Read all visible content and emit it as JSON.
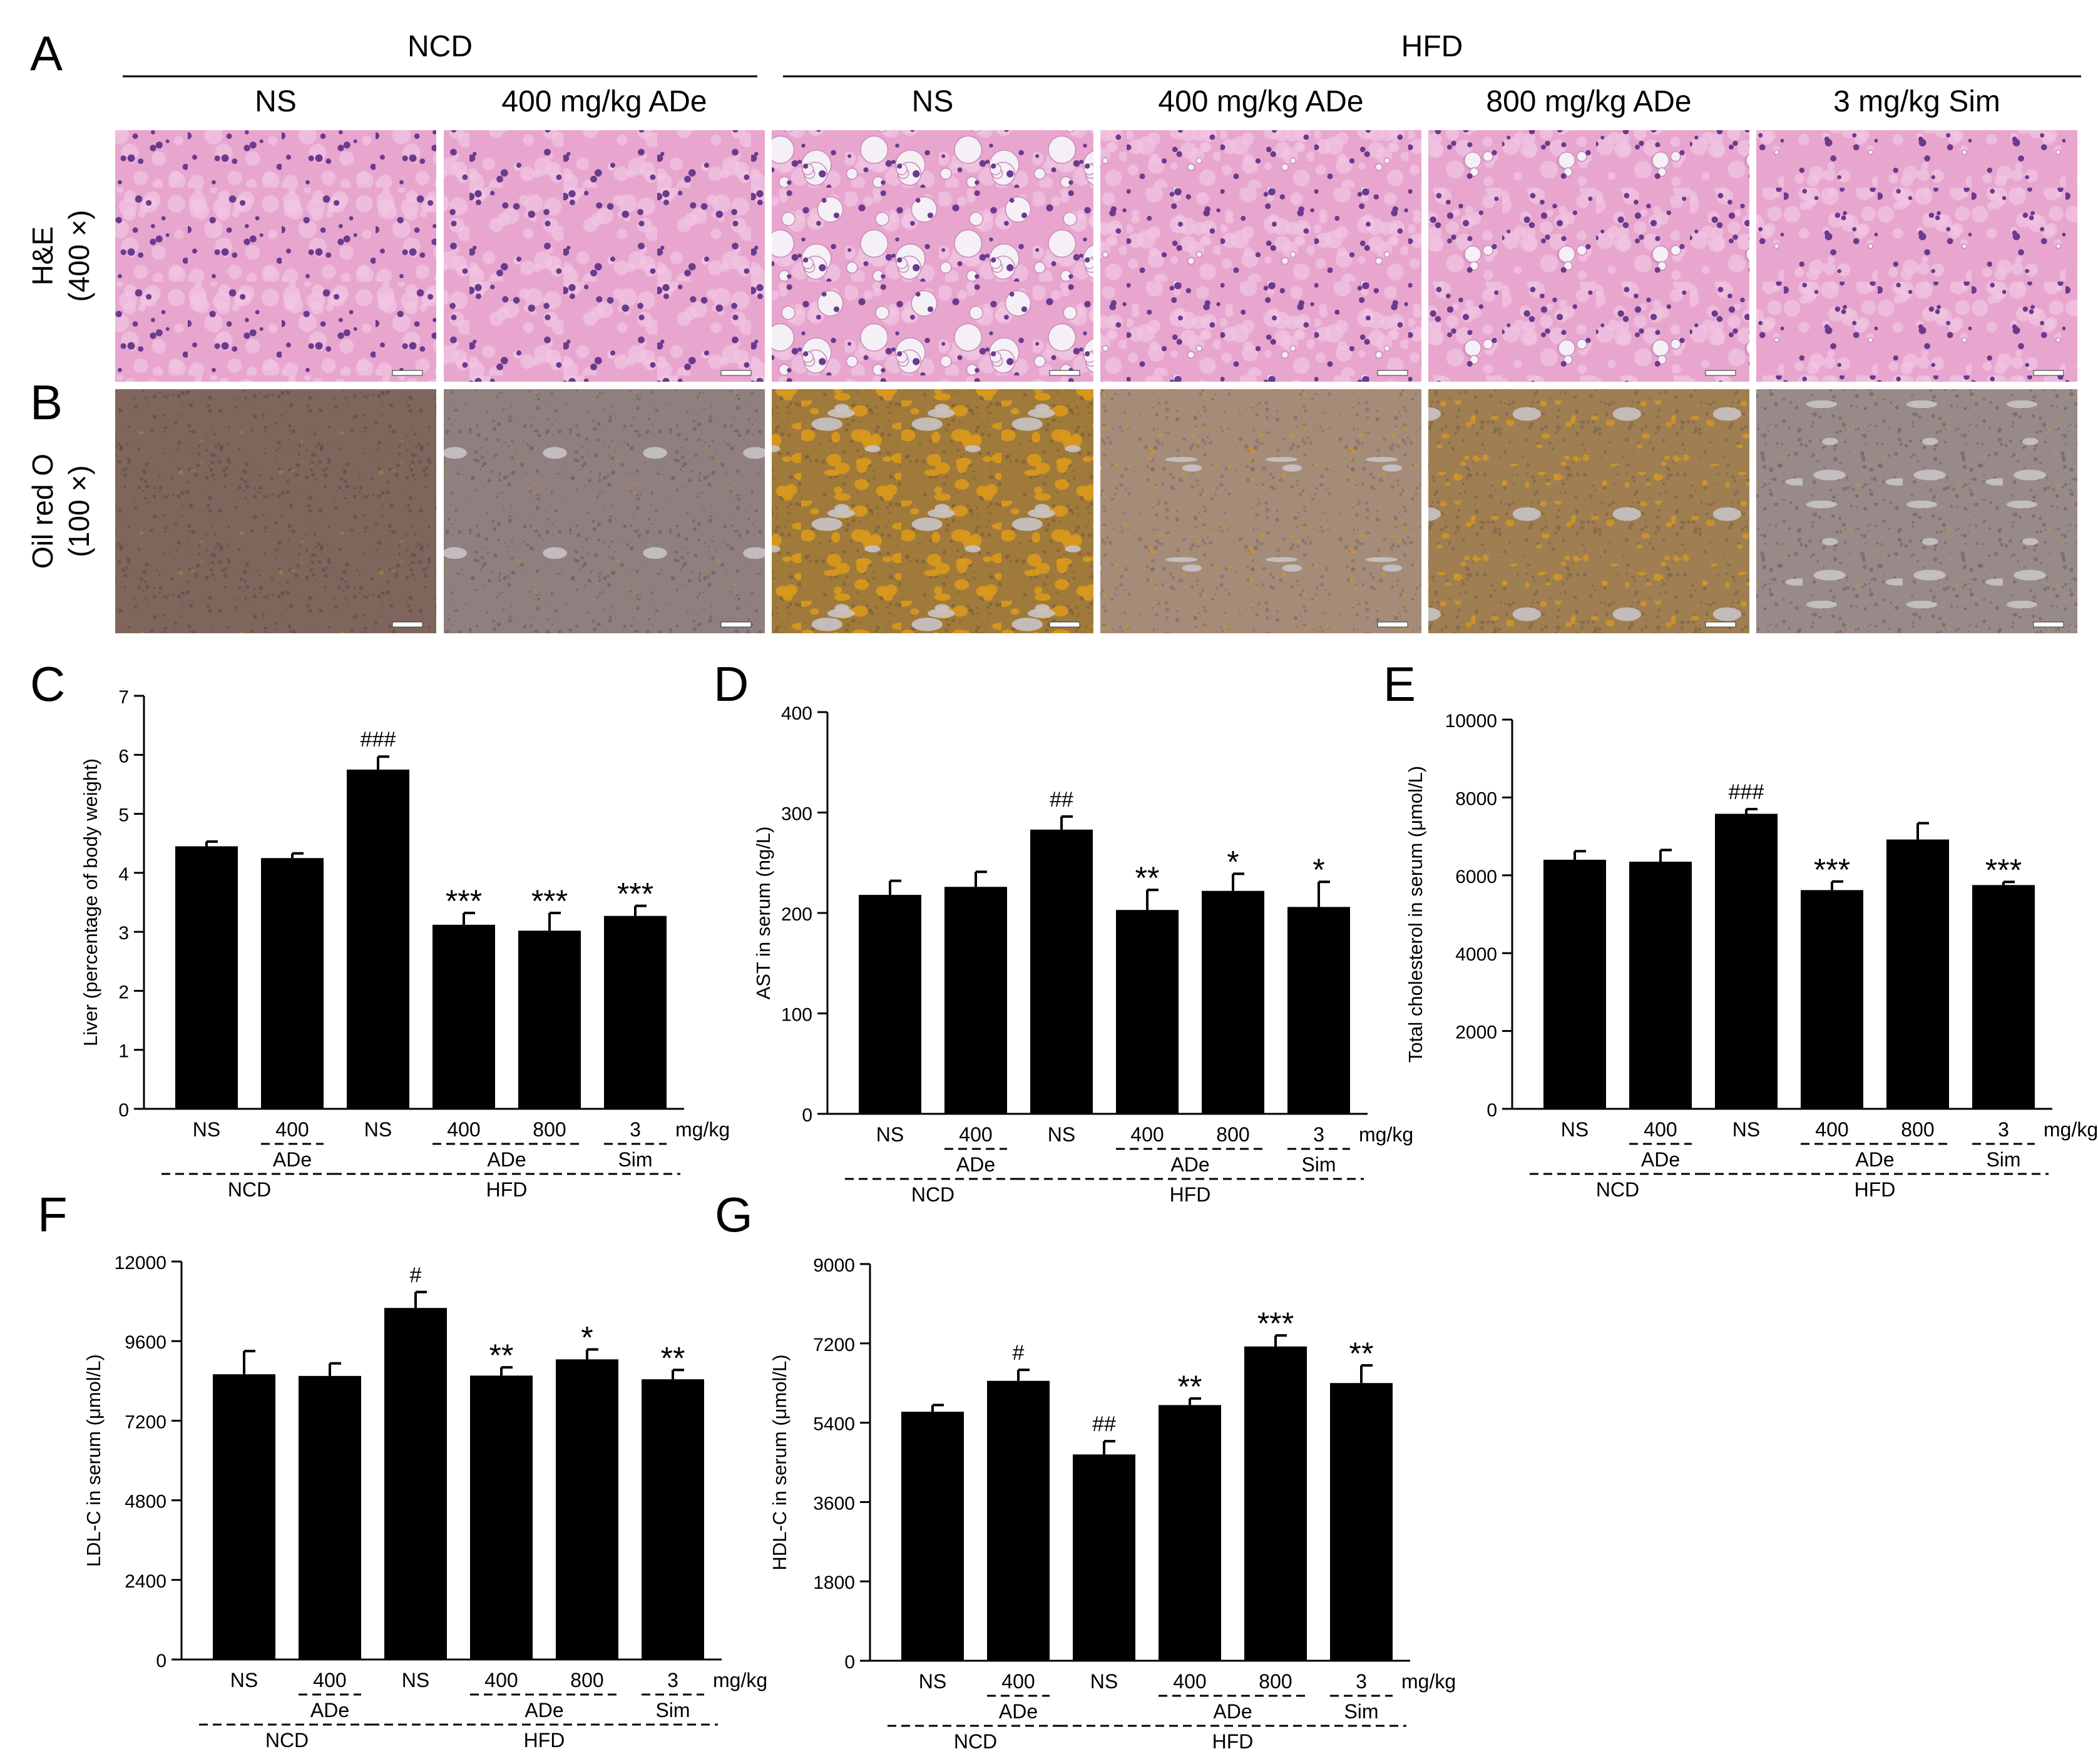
{
  "panels_top": {
    "A": {
      "letter": "A",
      "row_label": [
        "H&E",
        "(400 ×)"
      ],
      "groups": [
        {
          "name": "NCD",
          "columns": [
            "NS",
            "400 mg/kg ADe"
          ]
        },
        {
          "name": "HFD",
          "columns": [
            "NS",
            "400 mg/kg ADe",
            "800 mg/kg ADe",
            "3 mg/kg Sim"
          ]
        }
      ]
    },
    "B": {
      "letter": "B",
      "row_label": [
        "Oil red O",
        "(100 ×)"
      ]
    }
  },
  "colors": {
    "he_background": "#e8a6cf",
    "he_nuclei": "#6a3a8e",
    "he_vacuole": "#f4f0f6",
    "oro_background": "#8a7268",
    "oro_lipid": "#d8981c",
    "oro_space": "#c8c4c6",
    "bar_fill": "#000000"
  },
  "chart_data": [
    {
      "panel": "C",
      "type": "bar",
      "ylabel": "Liver (percentage of body weight)",
      "ylim": [
        0,
        7
      ],
      "yticks": [
        0,
        1,
        2,
        3,
        4,
        5,
        6,
        7
      ],
      "categories": [
        "NS",
        "400",
        "NS",
        "400",
        "800",
        "3"
      ],
      "values": [
        4.45,
        4.25,
        5.75,
        3.12,
        3.02,
        3.27
      ],
      "errors": [
        0.08,
        0.08,
        0.22,
        0.2,
        0.3,
        0.17
      ],
      "annotations": [
        "",
        "",
        "###",
        "***",
        "***",
        "***"
      ],
      "unit": "mg/kg",
      "subgroups": [
        {
          "label": "ADe",
          "from": 1,
          "to": 1
        },
        {
          "label": "ADe",
          "from": 3,
          "to": 4
        },
        {
          "label": "Sim",
          "from": 5,
          "to": 5
        }
      ],
      "groups": [
        {
          "label": "NCD",
          "from": 0,
          "to": 1
        },
        {
          "label": "HFD",
          "from": 2,
          "to": 5
        }
      ]
    },
    {
      "panel": "D",
      "type": "bar",
      "ylabel": "AST in serum (ng/L)",
      "ylim": [
        0,
        400
      ],
      "yticks": [
        0,
        100,
        200,
        300,
        400
      ],
      "categories": [
        "NS",
        "400",
        "NS",
        "400",
        "800",
        "3"
      ],
      "values": [
        218,
        226,
        283,
        203,
        222,
        206
      ],
      "errors": [
        14,
        15,
        13,
        20,
        17,
        25
      ],
      "annotations": [
        "",
        "",
        "##",
        "**",
        "*",
        "*"
      ],
      "unit": "mg/kg",
      "subgroups": [
        {
          "label": "ADe",
          "from": 1,
          "to": 1
        },
        {
          "label": "ADe",
          "from": 3,
          "to": 4
        },
        {
          "label": "Sim",
          "from": 5,
          "to": 5
        }
      ],
      "groups": [
        {
          "label": "NCD",
          "from": 0,
          "to": 1
        },
        {
          "label": "HFD",
          "from": 2,
          "to": 5
        }
      ]
    },
    {
      "panel": "E",
      "type": "bar",
      "ylabel": "Total cholesterol in serum (μmol/L)",
      "ylim": [
        0,
        10000
      ],
      "yticks": [
        0,
        2000,
        4000,
        6000,
        8000,
        10000
      ],
      "categories": [
        "NS",
        "400",
        "NS",
        "400",
        "800",
        "3"
      ],
      "values": [
        6400,
        6350,
        7580,
        5620,
        6920,
        5750
      ],
      "errors": [
        220,
        300,
        120,
        220,
        420,
        80
      ],
      "annotations": [
        "",
        "",
        "###",
        "***",
        "",
        "***"
      ],
      "unit": "mg/kg",
      "subgroups": [
        {
          "label": "ADe",
          "from": 1,
          "to": 1
        },
        {
          "label": "ADe",
          "from": 3,
          "to": 4
        },
        {
          "label": "Sim",
          "from": 5,
          "to": 5
        }
      ],
      "groups": [
        {
          "label": "NCD",
          "from": 0,
          "to": 1
        },
        {
          "label": "HFD",
          "from": 2,
          "to": 5
        }
      ]
    },
    {
      "panel": "F",
      "type": "bar",
      "ylabel": "LDL-C in serum (μmol/L)",
      "ylim": [
        0,
        12000
      ],
      "yticks": [
        0,
        2400,
        4800,
        7200,
        9600,
        12000
      ],
      "categories": [
        "NS",
        "400",
        "NS",
        "400",
        "800",
        "3"
      ],
      "values": [
        8600,
        8550,
        10600,
        8560,
        9050,
        8450
      ],
      "errors": [
        700,
        380,
        480,
        250,
        300,
        280
      ],
      "annotations": [
        "",
        "",
        "#",
        "**",
        "*",
        "**"
      ],
      "unit": "mg/kg",
      "subgroups": [
        {
          "label": "ADe",
          "from": 1,
          "to": 1
        },
        {
          "label": "ADe",
          "from": 3,
          "to": 4
        },
        {
          "label": "Sim",
          "from": 5,
          "to": 5
        }
      ],
      "groups": [
        {
          "label": "NCD",
          "from": 0,
          "to": 1
        },
        {
          "label": "HFD",
          "from": 2,
          "to": 5
        }
      ]
    },
    {
      "panel": "G",
      "type": "bar",
      "ylabel": "HDL-C in serum (μmol/L)",
      "ylim": [
        0,
        9000
      ],
      "yticks": [
        0,
        1800,
        3600,
        5400,
        7200,
        9000
      ],
      "categories": [
        "NS",
        "400",
        "NS",
        "400",
        "800",
        "3"
      ],
      "values": [
        5650,
        6350,
        4680,
        5800,
        7130,
        6300
      ],
      "errors": [
        150,
        250,
        300,
        150,
        250,
        400
      ],
      "annotations": [
        "",
        "#",
        "##",
        "**",
        "***",
        "**"
      ],
      "unit": "mg/kg",
      "subgroups": [
        {
          "label": "ADe",
          "from": 1,
          "to": 1
        },
        {
          "label": "ADe",
          "from": 3,
          "to": 4
        },
        {
          "label": "Sim",
          "from": 5,
          "to": 5
        }
      ],
      "groups": [
        {
          "label": "NCD",
          "from": 0,
          "to": 1
        },
        {
          "label": "HFD",
          "from": 2,
          "to": 5
        }
      ]
    }
  ]
}
